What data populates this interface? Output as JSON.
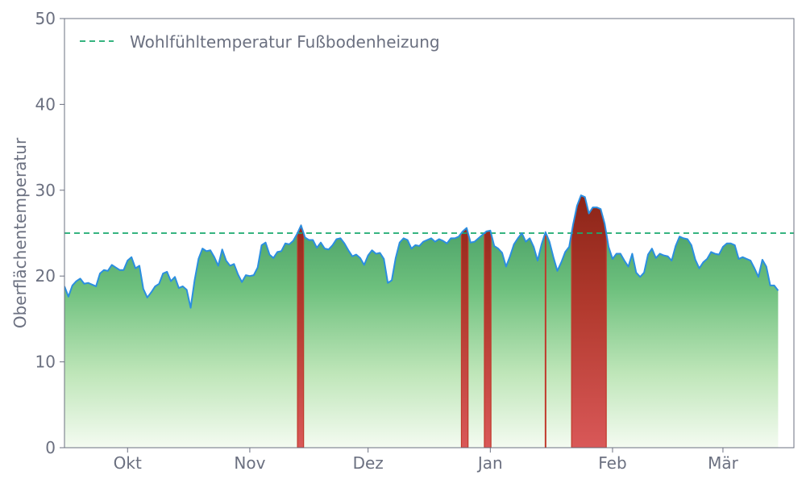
{
  "chart_data": {
    "type": "area",
    "title": "",
    "xlabel": "",
    "ylabel": "Oberflächentemperatur",
    "ylim": [
      0,
      50
    ],
    "yticks": [
      0,
      10,
      20,
      30,
      40,
      50
    ],
    "grid": false,
    "legend_position": "top-left",
    "xlim_day": [
      -16,
      169
    ],
    "xticks": [
      {
        "label": "Okt",
        "day": 0
      },
      {
        "label": "Nov",
        "day": 31
      },
      {
        "label": "Dez",
        "day": 61
      },
      {
        "label": "Jan",
        "day": 92
      },
      {
        "label": "Feb",
        "day": 123
      },
      {
        "label": "Mär",
        "day": 151
      }
    ],
    "reference_line": {
      "name": "Wohlfühltemperatur Fußbodenheizung",
      "value": 25,
      "color": "#1aaa6e"
    },
    "series": [
      {
        "color": "#2b8ee0",
        "x_start_day": -16,
        "values": [
          18.8,
          17.6,
          18.9,
          19.4,
          19.7,
          19.1,
          19.2,
          19.0,
          18.8,
          20.3,
          20.7,
          20.6,
          21.3,
          21.0,
          20.7,
          20.7,
          21.8,
          22.2,
          20.9,
          21.2,
          18.5,
          17.5,
          18.1,
          18.8,
          19.1,
          20.3,
          20.5,
          19.4,
          19.9,
          18.6,
          18.8,
          18.4,
          16.3,
          19.5,
          22.0,
          23.2,
          22.9,
          23.0,
          22.2,
          21.2,
          23.1,
          21.8,
          21.2,
          21.4,
          20.2,
          19.3,
          20.1,
          20.0,
          20.1,
          21.0,
          23.6,
          23.9,
          22.5,
          22.1,
          22.8,
          22.9,
          23.8,
          23.7,
          24.1,
          24.9,
          25.9,
          24.5,
          24.2,
          24.2,
          23.3,
          23.9,
          23.2,
          23.1,
          23.6,
          24.3,
          24.4,
          23.8,
          23.0,
          22.3,
          22.5,
          22.1,
          21.3,
          22.4,
          23.0,
          22.6,
          22.7,
          22.0,
          19.2,
          19.5,
          22.1,
          23.9,
          24.4,
          24.2,
          23.2,
          23.6,
          23.5,
          24.0,
          24.2,
          24.4,
          24.0,
          24.3,
          24.1,
          23.8,
          24.4,
          24.4,
          24.6,
          25.2,
          25.6,
          23.9,
          24.0,
          24.4,
          24.8,
          25.2,
          25.3,
          23.5,
          23.2,
          22.7,
          21.1,
          22.3,
          23.7,
          24.4,
          25.0,
          24.0,
          24.4,
          23.4,
          21.8,
          23.7,
          25.1,
          24.0,
          22.2,
          20.6,
          21.6,
          22.8,
          23.4,
          26.0,
          28.2,
          29.4,
          29.2,
          27.3,
          28.0,
          28.0,
          27.8,
          26.1,
          23.4,
          22.0,
          22.6,
          22.6,
          21.8,
          21.1,
          22.6,
          20.4,
          19.9,
          20.4,
          22.5,
          23.2,
          22.1,
          22.6,
          22.4,
          22.3,
          21.8,
          23.5,
          24.6,
          24.4,
          24.3,
          23.6,
          21.9,
          20.9,
          21.6,
          22.0,
          22.8,
          22.6,
          22.5,
          23.4,
          23.8,
          23.8,
          23.6,
          22.0,
          22.2,
          22.0,
          21.8,
          20.9,
          19.9,
          21.9,
          21.1,
          18.9,
          18.9,
          18.3
        ]
      }
    ]
  }
}
